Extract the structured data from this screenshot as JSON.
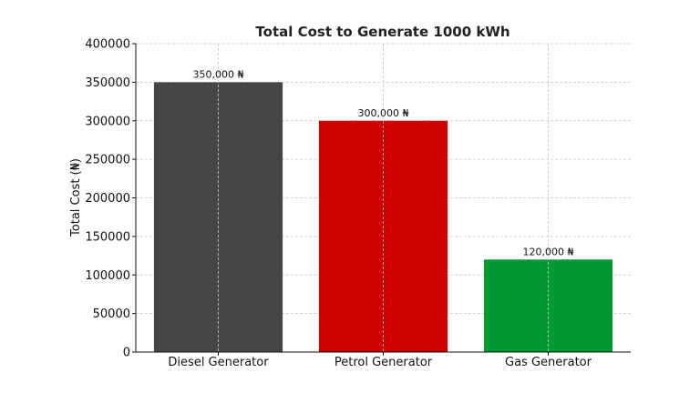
{
  "chart_data": {
    "type": "bar",
    "title": "Total Cost to Generate 1000 kWh",
    "xlabel": "",
    "ylabel": "Total Cost (₦)",
    "categories": [
      "Diesel Generator",
      "Petrol Generator",
      "Gas Generator"
    ],
    "values": [
      350000,
      300000,
      120000
    ],
    "value_labels": [
      "350,000 ₦",
      "300,000 ₦",
      "120,000 ₦"
    ],
    "colors": [
      "#454545",
      "#cc0000",
      "#009933"
    ],
    "ylim": [
      0,
      400000
    ],
    "yticks": [
      "0",
      "50000",
      "100000",
      "150000",
      "200000",
      "250000",
      "300000",
      "350000",
      "400000"
    ],
    "grid": true,
    "legend": "none"
  }
}
